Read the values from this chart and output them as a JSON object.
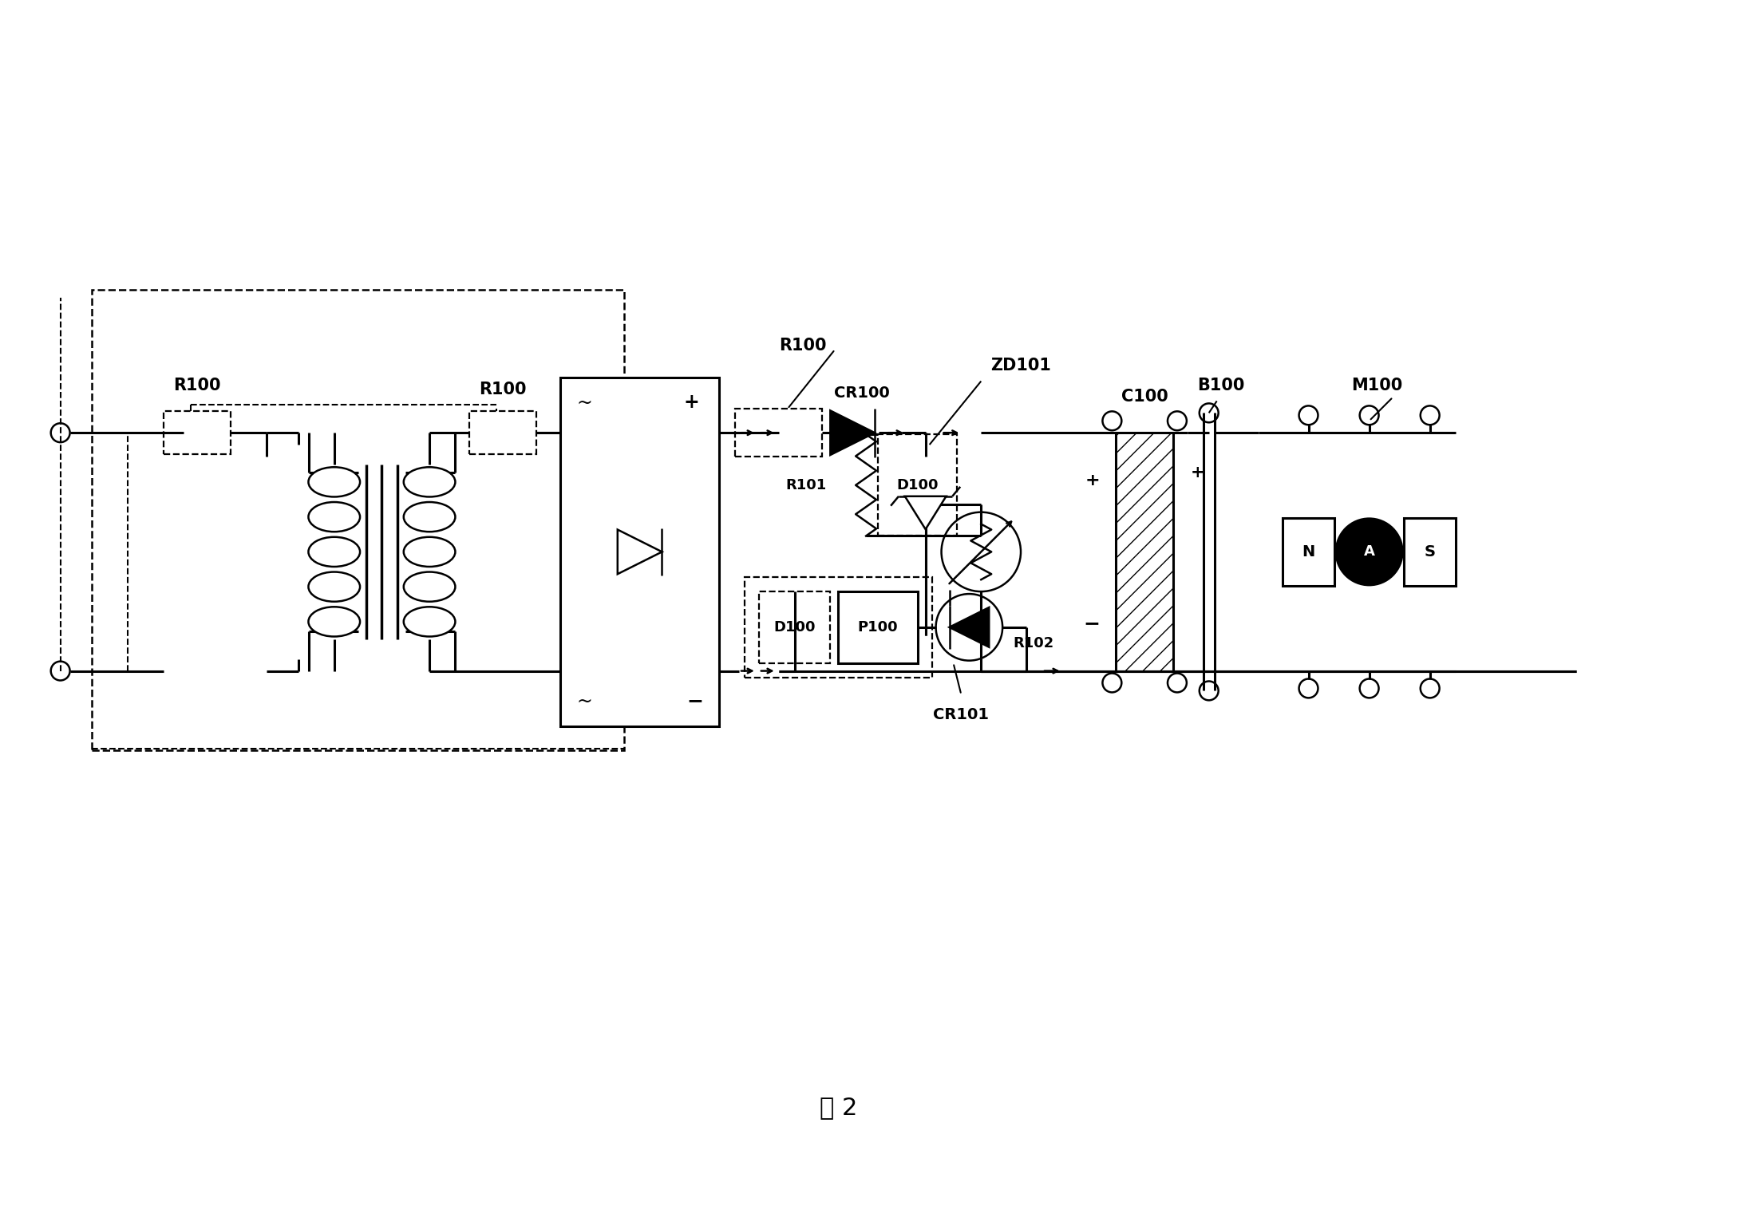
{
  "title": "图 2",
  "bg_color": "#ffffff",
  "lc": "#000000",
  "labels": {
    "R100_1": "R100",
    "R100_2": "R100",
    "R100_3": "R100",
    "R101": "R101",
    "R102": "R102",
    "D100_upper": "D100",
    "D100_lower": "D100",
    "P100": "P100",
    "CR100": "CR100",
    "CR101": "CR101",
    "ZD101": "ZD101",
    "C100": "C100",
    "B100": "B100",
    "M100": "M100"
  },
  "fig_width": 21.99,
  "fig_height": 15.21
}
